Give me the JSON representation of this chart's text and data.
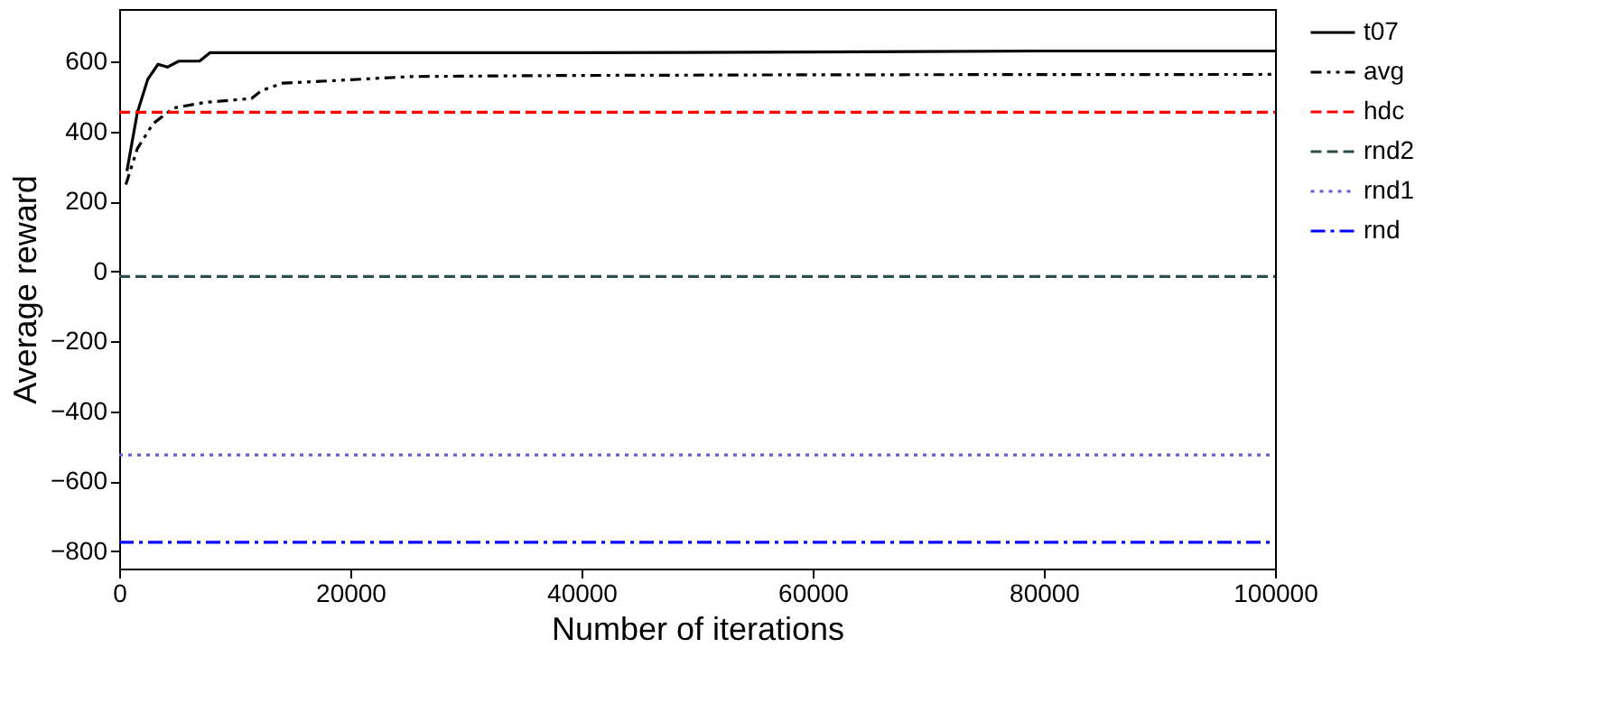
{
  "chart_data": {
    "type": "line",
    "xlabel": "Number of iterations",
    "ylabel": "Average reward",
    "xlim": [
      0,
      100000
    ],
    "xticks": [
      0,
      20000,
      40000,
      60000,
      80000,
      100000
    ],
    "ylim": [
      -850,
      750
    ],
    "yticks": [
      -800,
      -600,
      -400,
      -200,
      0,
      200,
      400,
      600
    ],
    "grid": false,
    "legend": "top right",
    "series": [
      {
        "name": "t07",
        "color": "#000000",
        "line_style": "solid",
        "x": [
          670,
          1570,
          2470,
          3360,
          4170,
          5160,
          6950,
          7850,
          20000,
          40000,
          60000,
          80000,
          100000
        ],
        "values": [
          287,
          454,
          549,
          592,
          584,
          601,
          601,
          625,
          625,
          625,
          627,
          630,
          630
        ]
      },
      {
        "name": "avg",
        "color": "#000000",
        "line_style": "dashdotdot",
        "x": [
          580,
          1570,
          2920,
          4710,
          7400,
          11440,
          12330,
          14130,
          17270,
          25340,
          38760,
          60000,
          100000
        ],
        "values": [
          248,
          351,
          422,
          467,
          483,
          494,
          517,
          538,
          543,
          557,
          560,
          562,
          563
        ]
      },
      {
        "name": "hdc",
        "color": "#ff0000",
        "line_style": "dashed",
        "x": [
          0,
          100000
        ],
        "values": [
          455,
          455
        ]
      },
      {
        "name": "rnd2",
        "color": "#2f4f4f",
        "line_style": "dashed",
        "x": [
          0,
          100000
        ],
        "values": [
          -15,
          -15
        ]
      },
      {
        "name": "rnd1",
        "color": "#6a5acd",
        "line_style": "dotted",
        "x": [
          0,
          100000
        ],
        "values": [
          -525,
          -525
        ]
      },
      {
        "name": "rnd",
        "color": "#0000ff",
        "line_style": "dashdot",
        "x": [
          0,
          100000
        ],
        "values": [
          -775,
          -775
        ]
      }
    ]
  }
}
